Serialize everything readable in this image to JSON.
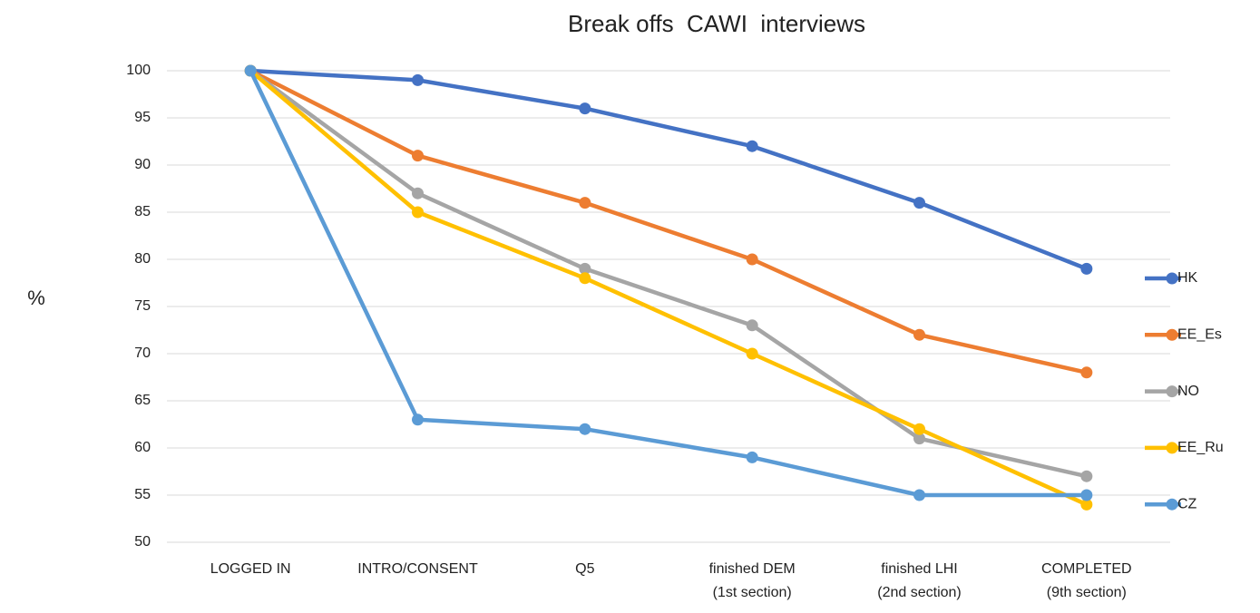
{
  "chart_data": {
    "type": "line",
    "title": "Break offs  CAWI  interviews",
    "y_label": "%",
    "categories": [
      "LOGGED IN",
      "INTRO/CONSENT",
      "Q5",
      "finished DEM\n(1st section)",
      "finished LHI\n(2nd section)",
      "COMPLETED\n(9th section)"
    ],
    "series": [
      {
        "name": "HK",
        "color": "#4472c4",
        "values": [
          100,
          99,
          96,
          92,
          86,
          79
        ]
      },
      {
        "name": "EE_Es",
        "color": "#ed7d31",
        "values": [
          100,
          91,
          86,
          80,
          72,
          68
        ]
      },
      {
        "name": "NO",
        "color": "#a5a5a5",
        "values": [
          100,
          87,
          79,
          73,
          61,
          57
        ]
      },
      {
        "name": "EE_Ru",
        "color": "#ffc000",
        "values": [
          100,
          85,
          78,
          70,
          62,
          54
        ]
      },
      {
        "name": "CZ",
        "color": "#5b9bd5",
        "values": [
          100,
          63,
          62,
          59,
          55,
          55
        ]
      }
    ],
    "ylim": [
      50,
      100
    ],
    "yticks": [
      50,
      55,
      60,
      65,
      70,
      75,
      80,
      85,
      90,
      95,
      100
    ],
    "grid": true,
    "legend": "right"
  }
}
